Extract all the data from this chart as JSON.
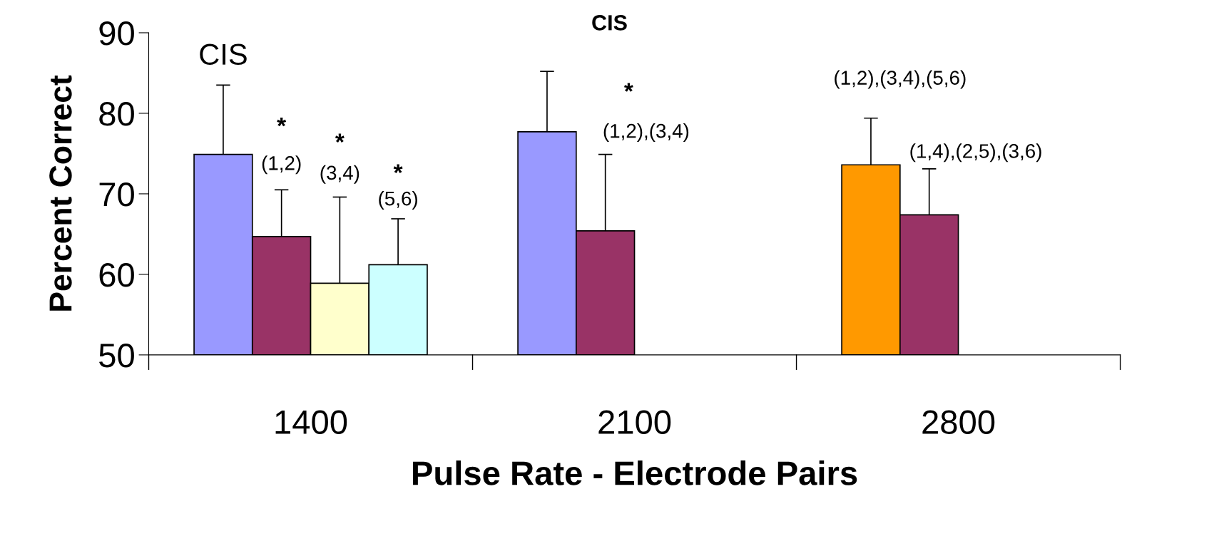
{
  "chart_data": {
    "type": "bar",
    "title": "CIS",
    "xlabel": "Pulse Rate - Electrode Pairs",
    "ylabel": "Percent Correct",
    "categories": [
      "1400",
      "2100",
      "2800"
    ],
    "series": [
      {
        "colors": [
          "#9999ff",
          "#9999ff",
          "#ff9900"
        ],
        "values": [
          74.9,
          77.7,
          73.6
        ],
        "errors": [
          8.6,
          7.5,
          5.8
        ]
      },
      {
        "color": "#993366",
        "values": [
          64.7,
          65.4,
          67.4
        ],
        "errors": [
          5.8,
          9.5,
          5.7
        ]
      },
      {
        "color": "#ffffcc",
        "values": [
          58.9,
          null,
          null
        ],
        "errors": [
          10.7,
          null,
          null
        ]
      },
      {
        "color": "#ccffff",
        "values": [
          61.2,
          null,
          null
        ],
        "errors": [
          5.7,
          null,
          null
        ]
      }
    ],
    "ylim": [
      50,
      90
    ],
    "yticks": [
      50,
      60,
      70,
      80,
      90
    ],
    "grid": false,
    "legend": false,
    "annotations": [
      "CIS",
      "*",
      "(1,2)",
      "*",
      "(3,4)",
      "*",
      "(5,6)",
      "*",
      "(1,2),(3,4)",
      "(1,2),(3,4),(5,6)",
      "(1,4),(2,5),(3,6)"
    ]
  }
}
